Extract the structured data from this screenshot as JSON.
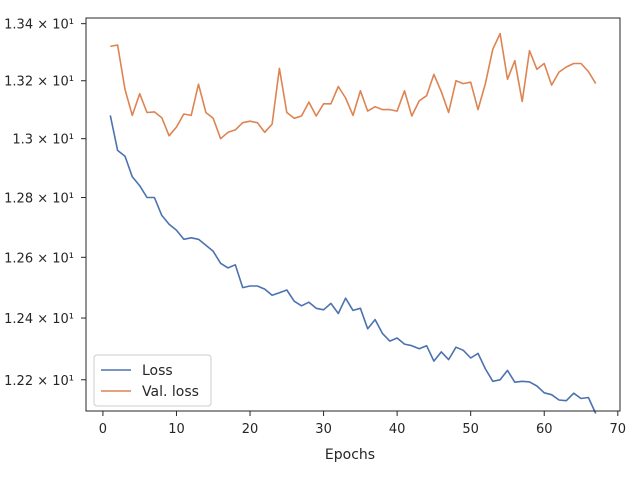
{
  "chart_data": {
    "type": "line",
    "title": "",
    "xlabel": "Epochs",
    "ylabel": "",
    "xlim": [
      -2.3,
      70.3
    ],
    "ylim": [
      12.1,
      13.42
    ],
    "yscale": "log",
    "xticks": [
      {
        "value": 0,
        "label": "0"
      },
      {
        "value": 10,
        "label": "10"
      },
      {
        "value": 20,
        "label": "20"
      },
      {
        "value": 30,
        "label": "30"
      },
      {
        "value": 40,
        "label": "40"
      },
      {
        "value": 50,
        "label": "50"
      },
      {
        "value": 60,
        "label": "60"
      },
      {
        "value": 70,
        "label": "70"
      }
    ],
    "yticks": [
      {
        "value": 12.2,
        "label": "1.22 × 10¹"
      },
      {
        "value": 12.4,
        "label": "1.24 × 10¹"
      },
      {
        "value": 12.6,
        "label": "1.26 × 10¹"
      },
      {
        "value": 12.8,
        "label": "1.28 × 10¹"
      },
      {
        "value": 13.0,
        "label": "1.3 × 10¹"
      },
      {
        "value": 13.2,
        "label": "1.32 × 10¹"
      },
      {
        "value": 13.4,
        "label": "1.34 × 10¹"
      }
    ],
    "grid": false,
    "legend_position": "lower-left",
    "x": [
      1,
      2,
      3,
      4,
      5,
      6,
      7,
      8,
      9,
      10,
      11,
      12,
      13,
      14,
      15,
      16,
      17,
      18,
      19,
      20,
      21,
      22,
      23,
      24,
      25,
      26,
      27,
      28,
      29,
      30,
      31,
      32,
      33,
      34,
      35,
      36,
      37,
      38,
      39,
      40,
      41,
      42,
      43,
      44,
      45,
      46,
      47,
      48,
      49,
      50,
      51,
      52,
      53,
      54,
      55,
      56,
      57,
      58,
      59,
      60,
      61,
      62,
      63,
      64,
      65,
      66,
      67
    ],
    "series": [
      {
        "name": "Loss",
        "color": "#4c72b0",
        "values": [
          13.08,
          12.96,
          12.94,
          12.87,
          12.84,
          12.8,
          12.8,
          12.74,
          12.71,
          12.69,
          12.66,
          12.665,
          12.66,
          12.64,
          12.62,
          12.58,
          12.565,
          12.575,
          12.5,
          12.505,
          12.505,
          12.495,
          12.475,
          12.483,
          12.492,
          12.455,
          12.44,
          12.452,
          12.432,
          12.427,
          12.448,
          12.415,
          12.465,
          12.425,
          12.432,
          12.365,
          12.395,
          12.35,
          12.325,
          12.335,
          12.315,
          12.31,
          12.3,
          12.31,
          12.26,
          12.29,
          12.265,
          12.305,
          12.295,
          12.27,
          12.285,
          12.235,
          12.195,
          12.2,
          12.23,
          12.192,
          12.195,
          12.193,
          12.18,
          12.158,
          12.152,
          12.135,
          12.133,
          12.157,
          12.14,
          12.143,
          12.092
        ]
      },
      {
        "name": "Val. loss",
        "color": "#dd8452",
        "values": [
          13.32,
          13.325,
          13.17,
          13.08,
          13.155,
          13.09,
          13.092,
          13.072,
          13.01,
          13.04,
          13.085,
          13.08,
          13.188,
          13.09,
          13.07,
          13.0,
          13.022,
          13.03,
          13.055,
          13.06,
          13.055,
          13.022,
          13.05,
          13.243,
          13.09,
          13.07,
          13.078,
          13.126,
          13.078,
          13.12,
          13.12,
          13.18,
          13.14,
          13.08,
          13.165,
          13.095,
          13.11,
          13.1,
          13.1,
          13.095,
          13.165,
          13.078,
          13.13,
          13.148,
          13.222,
          13.162,
          13.09,
          13.2,
          13.19,
          13.195,
          13.1,
          13.19,
          13.31,
          13.365,
          13.205,
          13.27,
          13.128,
          13.305,
          13.24,
          13.26,
          13.185,
          13.23,
          13.248,
          13.26,
          13.26,
          13.232,
          13.19
        ]
      }
    ]
  }
}
